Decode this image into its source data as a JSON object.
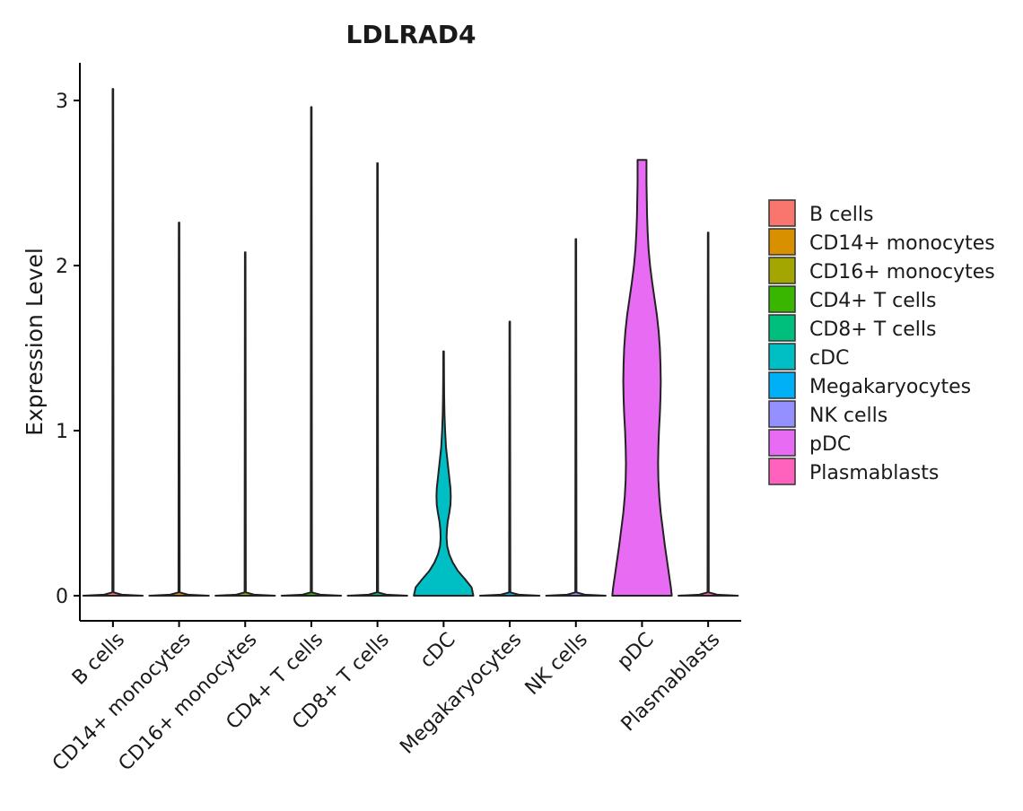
{
  "chart_data": {
    "type": "violin",
    "title": "LDLRAD4",
    "xlabel": "",
    "ylabel": "Expression Level",
    "ylim": [
      -0.15,
      3.22
    ],
    "yticks": [
      0,
      1,
      2,
      3
    ],
    "grid": false,
    "legend_position": "right",
    "categories": [
      "B cells",
      "CD14+ monocytes",
      "CD16+ monocytes",
      "CD4+ T cells",
      "CD8+ T cells",
      "cDC",
      "Megakaryocytes",
      "NK cells",
      "pDC",
      "Plasmablasts"
    ],
    "colors": [
      "#F8766D",
      "#D89000",
      "#A3A500",
      "#39B600",
      "#00BF7D",
      "#00BFC4",
      "#00B0F6",
      "#9590FF",
      "#E76BF3",
      "#FF62BC"
    ],
    "series": [
      {
        "name": "B cells",
        "max": 3.07,
        "density": [
          [
            0.0,
            1.0
          ],
          [
            0.006,
            0.3
          ],
          [
            0.02,
            0.02
          ],
          [
            3.07,
            0.01
          ]
        ]
      },
      {
        "name": "CD14+ monocytes",
        "max": 2.26,
        "density": [
          [
            0.0,
            1.0
          ],
          [
            0.006,
            0.3
          ],
          [
            0.02,
            0.02
          ],
          [
            2.26,
            0.01
          ]
        ]
      },
      {
        "name": "CD16+ monocytes",
        "max": 2.08,
        "density": [
          [
            0.0,
            1.0
          ],
          [
            0.006,
            0.3
          ],
          [
            0.02,
            0.02
          ],
          [
            2.08,
            0.01
          ]
        ]
      },
      {
        "name": "CD4+ T cells",
        "max": 2.96,
        "density": [
          [
            0.0,
            1.0
          ],
          [
            0.006,
            0.3
          ],
          [
            0.02,
            0.02
          ],
          [
            2.96,
            0.01
          ]
        ]
      },
      {
        "name": "CD8+ T cells",
        "max": 2.62,
        "density": [
          [
            0.0,
            1.0
          ],
          [
            0.006,
            0.3
          ],
          [
            0.02,
            0.02
          ],
          [
            2.62,
            0.01
          ]
        ]
      },
      {
        "name": "cDC",
        "max": 1.48,
        "density": [
          [
            0.0,
            1.0
          ],
          [
            0.05,
            0.94
          ],
          [
            0.1,
            0.72
          ],
          [
            0.15,
            0.48
          ],
          [
            0.2,
            0.31
          ],
          [
            0.25,
            0.19
          ],
          [
            0.3,
            0.12
          ],
          [
            0.35,
            0.1
          ],
          [
            0.4,
            0.11
          ],
          [
            0.45,
            0.14
          ],
          [
            0.5,
            0.19
          ],
          [
            0.55,
            0.23
          ],
          [
            0.6,
            0.24
          ],
          [
            0.65,
            0.23
          ],
          [
            0.7,
            0.2
          ],
          [
            0.8,
            0.14
          ],
          [
            0.9,
            0.08
          ],
          [
            1.0,
            0.05
          ],
          [
            1.1,
            0.03
          ],
          [
            1.2,
            0.02
          ],
          [
            1.3,
            0.015
          ],
          [
            1.48,
            0.01
          ]
        ]
      },
      {
        "name": "Megakaryocytes",
        "max": 1.66,
        "density": [
          [
            0.0,
            1.0
          ],
          [
            0.006,
            0.3
          ],
          [
            0.02,
            0.02
          ],
          [
            1.66,
            0.01
          ]
        ]
      },
      {
        "name": "NK cells",
        "max": 2.16,
        "density": [
          [
            0.0,
            1.0
          ],
          [
            0.006,
            0.3
          ],
          [
            0.02,
            0.02
          ],
          [
            2.16,
            0.01
          ]
        ]
      },
      {
        "name": "pDC",
        "max": 2.64,
        "density": [
          [
            0.0,
            1.0
          ],
          [
            0.05,
            0.97
          ],
          [
            0.1,
            0.93
          ],
          [
            0.2,
            0.85
          ],
          [
            0.3,
            0.77
          ],
          [
            0.4,
            0.7
          ],
          [
            0.5,
            0.63
          ],
          [
            0.6,
            0.58
          ],
          [
            0.7,
            0.55
          ],
          [
            0.8,
            0.54
          ],
          [
            0.9,
            0.55
          ],
          [
            1.0,
            0.57
          ],
          [
            1.1,
            0.6
          ],
          [
            1.2,
            0.62
          ],
          [
            1.3,
            0.63
          ],
          [
            1.4,
            0.62
          ],
          [
            1.5,
            0.6
          ],
          [
            1.6,
            0.56
          ],
          [
            1.7,
            0.5
          ],
          [
            1.8,
            0.42
          ],
          [
            1.9,
            0.34
          ],
          [
            2.0,
            0.27
          ],
          [
            2.1,
            0.22
          ],
          [
            2.2,
            0.19
          ],
          [
            2.3,
            0.17
          ],
          [
            2.4,
            0.16
          ],
          [
            2.5,
            0.15
          ],
          [
            2.64,
            0.15
          ]
        ]
      },
      {
        "name": "Plasmablasts",
        "max": 2.2,
        "density": [
          [
            0.0,
            1.0
          ],
          [
            0.006,
            0.3
          ],
          [
            0.02,
            0.02
          ],
          [
            2.2,
            0.01
          ]
        ]
      }
    ]
  }
}
